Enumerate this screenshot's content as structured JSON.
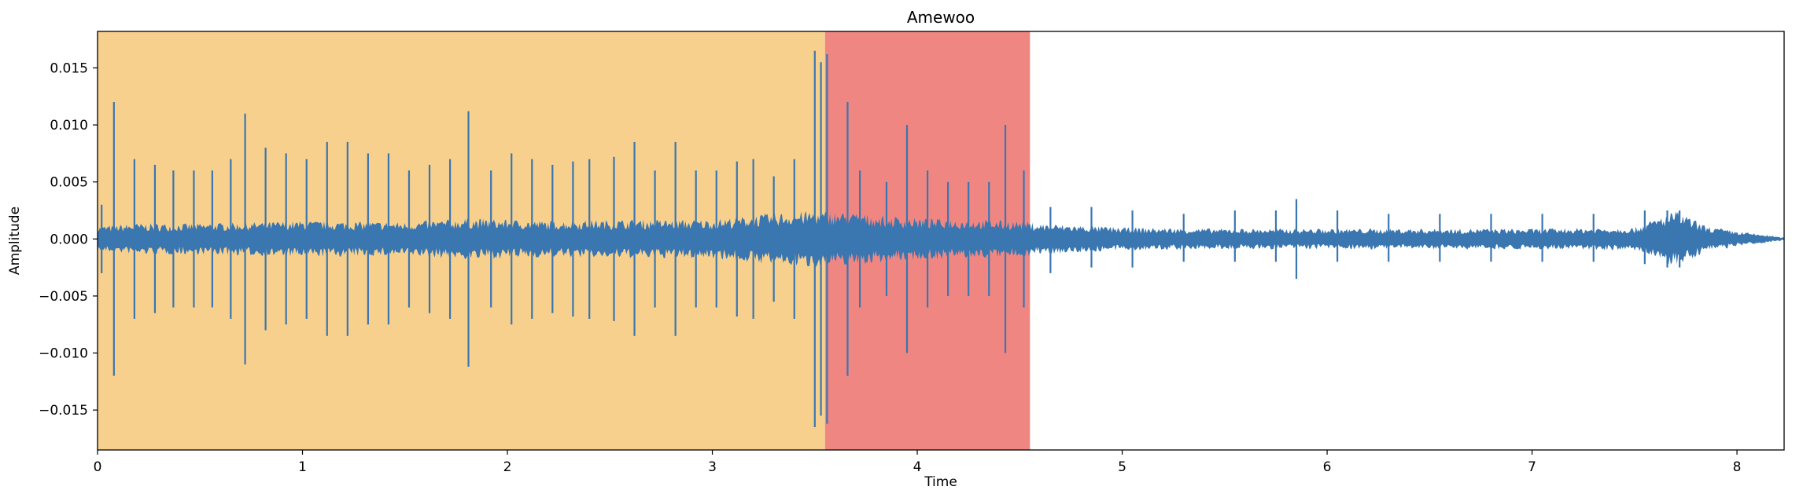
{
  "chart_data": {
    "type": "line",
    "title": "Amewoo",
    "xlabel": "Time",
    "ylabel": "Amplitude",
    "xlim": [
      0,
      8.23
    ],
    "ylim": [
      -0.0185,
      0.0182
    ],
    "x_ticks": [
      0,
      1,
      2,
      3,
      4,
      5,
      6,
      7,
      8
    ],
    "x_tick_labels": [
      "0",
      "1",
      "2",
      "3",
      "4",
      "5",
      "6",
      "7",
      "8"
    ],
    "y_ticks": [
      0.015,
      0.01,
      0.005,
      0.0,
      -0.005,
      -0.01,
      -0.015
    ],
    "y_tick_labels": [
      "0.015",
      "0.010",
      "0.005",
      "0.000",
      "−0.005",
      "−0.010",
      "−0.015"
    ],
    "grid": false,
    "colors": {
      "waveform": "#3a76b0",
      "region_1": "#f7d08e",
      "region_2": "#ef8681"
    },
    "highlight_regions": [
      {
        "x_start": 0.0,
        "x_end": 3.55
      },
      {
        "x_start": 3.55,
        "x_end": 4.55
      }
    ],
    "series": [
      {
        "envelope": [
          [
            0.0,
            0.001,
            -0.001
          ],
          [
            0.2,
            0.0012,
            -0.0012
          ],
          [
            0.5,
            0.0012,
            -0.0012
          ],
          [
            1.0,
            0.0014,
            -0.0014
          ],
          [
            1.5,
            0.0013,
            -0.0013
          ],
          [
            1.8,
            0.0016,
            -0.0016
          ],
          [
            2.2,
            0.0014,
            -0.0014
          ],
          [
            2.6,
            0.0015,
            -0.0015
          ],
          [
            3.0,
            0.0015,
            -0.0015
          ],
          [
            3.3,
            0.002,
            -0.002
          ],
          [
            3.5,
            0.0022,
            -0.0022
          ],
          [
            3.7,
            0.002,
            -0.002
          ],
          [
            4.0,
            0.0016,
            -0.0016
          ],
          [
            4.5,
            0.0014,
            -0.0014
          ],
          [
            4.6,
            0.0012,
            -0.0012
          ],
          [
            5.0,
            0.0009,
            -0.0009
          ],
          [
            5.5,
            0.0008,
            -0.0008
          ],
          [
            6.0,
            0.0008,
            -0.0008
          ],
          [
            6.5,
            0.0008,
            -0.0008
          ],
          [
            7.0,
            0.0008,
            -0.0008
          ],
          [
            7.5,
            0.0009,
            -0.0009
          ],
          [
            7.7,
            0.0022,
            -0.0022
          ],
          [
            7.85,
            0.001,
            -0.001
          ],
          [
            8.0,
            0.0006,
            -0.0006
          ],
          [
            8.15,
            0.0003,
            -0.0003
          ],
          [
            8.23,
            0.0001,
            -0.0001
          ]
        ],
        "peaks": [
          [
            0.02,
            0.003,
            -0.003
          ],
          [
            0.08,
            0.012,
            -0.012
          ],
          [
            0.18,
            0.007,
            -0.007
          ],
          [
            0.28,
            0.0065,
            -0.0065
          ],
          [
            0.37,
            0.006,
            -0.006
          ],
          [
            0.47,
            0.006,
            -0.006
          ],
          [
            0.56,
            0.006,
            -0.006
          ],
          [
            0.65,
            0.007,
            -0.007
          ],
          [
            0.72,
            0.011,
            -0.011
          ],
          [
            0.82,
            0.008,
            -0.008
          ],
          [
            0.92,
            0.0075,
            -0.0075
          ],
          [
            1.02,
            0.007,
            -0.007
          ],
          [
            1.12,
            0.0085,
            -0.0085
          ],
          [
            1.22,
            0.0085,
            -0.0085
          ],
          [
            1.32,
            0.0075,
            -0.0075
          ],
          [
            1.42,
            0.0075,
            -0.0075
          ],
          [
            1.52,
            0.006,
            -0.006
          ],
          [
            1.62,
            0.0065,
            -0.0065
          ],
          [
            1.72,
            0.007,
            -0.007
          ],
          [
            1.81,
            0.0112,
            -0.0112
          ],
          [
            1.92,
            0.006,
            -0.006
          ],
          [
            2.02,
            0.0075,
            -0.0075
          ],
          [
            2.12,
            0.007,
            -0.007
          ],
          [
            2.22,
            0.0065,
            -0.0065
          ],
          [
            2.32,
            0.0068,
            -0.0068
          ],
          [
            2.4,
            0.007,
            -0.007
          ],
          [
            2.52,
            0.0072,
            -0.0072
          ],
          [
            2.62,
            0.0085,
            -0.0085
          ],
          [
            2.72,
            0.006,
            -0.006
          ],
          [
            2.82,
            0.0085,
            -0.0085
          ],
          [
            2.92,
            0.006,
            -0.006
          ],
          [
            3.02,
            0.006,
            -0.006
          ],
          [
            3.12,
            0.0068,
            -0.0068
          ],
          [
            3.2,
            0.007,
            -0.007
          ],
          [
            3.3,
            0.0055,
            -0.0055
          ],
          [
            3.4,
            0.007,
            -0.007
          ],
          [
            3.5,
            0.0165,
            -0.0165
          ],
          [
            3.53,
            0.0155,
            -0.0155
          ],
          [
            3.56,
            0.0162,
            -0.0162
          ],
          [
            3.66,
            0.012,
            -0.012
          ],
          [
            3.72,
            0.006,
            -0.006
          ],
          [
            3.85,
            0.005,
            -0.005
          ],
          [
            3.95,
            0.01,
            -0.01
          ],
          [
            4.05,
            0.006,
            -0.006
          ],
          [
            4.15,
            0.005,
            -0.005
          ],
          [
            4.25,
            0.005,
            -0.005
          ],
          [
            4.35,
            0.005,
            -0.005
          ],
          [
            4.43,
            0.01,
            -0.01
          ],
          [
            4.52,
            0.006,
            -0.006
          ],
          [
            4.65,
            0.0028,
            -0.003
          ],
          [
            4.85,
            0.0028,
            -0.0025
          ],
          [
            5.05,
            0.0025,
            -0.0025
          ],
          [
            5.3,
            0.0022,
            -0.002
          ],
          [
            5.55,
            0.0025,
            -0.002
          ],
          [
            5.75,
            0.0025,
            -0.002
          ],
          [
            5.85,
            0.0035,
            -0.0035
          ],
          [
            6.05,
            0.0025,
            -0.002
          ],
          [
            6.3,
            0.0022,
            -0.002
          ],
          [
            6.55,
            0.0022,
            -0.002
          ],
          [
            6.8,
            0.0022,
            -0.002
          ],
          [
            7.05,
            0.0022,
            -0.002
          ],
          [
            7.3,
            0.0022,
            -0.002
          ],
          [
            7.55,
            0.0025,
            -0.0022
          ],
          [
            7.66,
            0.0025,
            -0.0025
          ],
          [
            7.72,
            0.0025,
            -0.0025
          ]
        ]
      }
    ]
  }
}
